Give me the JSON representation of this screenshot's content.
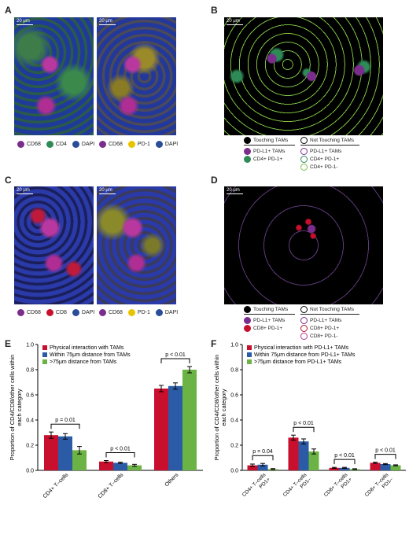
{
  "panels": {
    "A": {
      "letter": "A",
      "scale": "20 μm",
      "legend_left": [
        {
          "label": "CD68",
          "color": "#7b2d8e"
        },
        {
          "label": "CD4",
          "color": "#2e8b57"
        },
        {
          "label": "DAPI",
          "color": "#2a4d9a"
        }
      ],
      "legend_right": [
        {
          "label": "CD68",
          "color": "#7b2d8e"
        },
        {
          "label": "PD-1",
          "color": "#e8c400"
        },
        {
          "label": "DAPI",
          "color": "#2a4d9a"
        }
      ]
    },
    "B": {
      "letter": "B",
      "scale": "20 μm",
      "touching_header": "Touching TAMs",
      "not_touching_header": "Not Touching TAMs",
      "touching": [
        {
          "label": "PD-L1+ TAMs",
          "color": "#7b2d8e"
        },
        {
          "label": "CD4+ PD-1+",
          "color": "#2e8b57"
        }
      ],
      "not_touching": [
        {
          "label": "PD-L1+ TAMs",
          "color": "#7b2d8e"
        },
        {
          "label": "CD4+ PD-1+",
          "color": "#2e8b57"
        },
        {
          "label": "CD4+ PD-1-",
          "color": "#7dc242"
        }
      ]
    },
    "C": {
      "letter": "C",
      "scale": "20 μm",
      "legend_left": [
        {
          "label": "CD68",
          "color": "#7b2d8e"
        },
        {
          "label": "CD8",
          "color": "#c8102e"
        },
        {
          "label": "DAPI",
          "color": "#2a4d9a"
        }
      ],
      "legend_right": [
        {
          "label": "CD68",
          "color": "#7b2d8e"
        },
        {
          "label": "PD-1",
          "color": "#e8c400"
        },
        {
          "label": "DAPI",
          "color": "#2a4d9a"
        }
      ]
    },
    "D": {
      "letter": "D",
      "scale": "20 μm",
      "touching_header": "Touching TAMs",
      "not_touching_header": "Not Touching TAMs",
      "touching": [
        {
          "label": "PD-L1+ TAMs",
          "color": "#7b2d8e"
        },
        {
          "label": "CD8+ PD-1+",
          "color": "#c8102e"
        }
      ],
      "not_touching": [
        {
          "label": "PD-L1+ TAMs",
          "color": "#7b2d8e"
        },
        {
          "label": "CD8+ PD-1+",
          "color": "#c8102e"
        },
        {
          "label": "CD8+ PD-1-",
          "color": "#b03a8a"
        }
      ]
    },
    "E": {
      "letter": "E"
    },
    "F": {
      "letter": "F"
    }
  },
  "chart_data": [
    {
      "type": "bar",
      "ylabel": "Proportion of CD4/CD8/other cells within each category",
      "ylim": [
        0,
        1.0
      ],
      "yticks": [
        "0.0",
        "0.2",
        "0.4",
        "0.6",
        "0.8",
        "1.0"
      ],
      "categories": [
        "CD4+ T–cells",
        "CD8+ T–cells",
        "Others"
      ],
      "series": [
        {
          "name": "Physical interaction with TAMs",
          "color": "#c8102e",
          "values": [
            0.28,
            0.07,
            0.65
          ],
          "err": [
            0.025,
            0.008,
            0.025
          ]
        },
        {
          "name": "Within 75μm distance from TAMs",
          "color": "#2b5ba6",
          "values": [
            0.27,
            0.06,
            0.67
          ],
          "err": [
            0.022,
            0.005,
            0.025
          ]
        },
        {
          "name": ">75μm distance from TAMs",
          "color": "#6ab344",
          "values": [
            0.16,
            0.04,
            0.8
          ],
          "err": [
            0.03,
            0.008,
            0.025
          ]
        }
      ],
      "annotations": [
        "p = 0.01",
        "p < 0.01",
        "p < 0.01"
      ],
      "legend": "top-left"
    },
    {
      "type": "bar",
      "ylabel": "Proportion of CD4/CD8/other cells within each category",
      "ylim": [
        0,
        1.0
      ],
      "yticks": [
        "0.0",
        "0.2",
        "0.4",
        "0.6",
        "0.8",
        "1.0"
      ],
      "categories": [
        [
          "CD4+ T–cells",
          "PD1+"
        ],
        [
          "CD4+ T–cells",
          "PD1–"
        ],
        [
          "CD8+ T–cells",
          "PD1+"
        ],
        [
          "CD8+ T–cells",
          "PD1–"
        ]
      ],
      "series": [
        {
          "name": "Physical interaction with PD-L1+ TAMs",
          "color": "#c8102e",
          "values": [
            0.04,
            0.26,
            0.02,
            0.06
          ],
          "err": [
            0.01,
            0.02,
            0.004,
            0.005
          ]
        },
        {
          "name": "Within 75μm distance from PD-L1+ TAMs",
          "color": "#2b5ba6",
          "values": [
            0.045,
            0.23,
            0.02,
            0.05
          ],
          "err": [
            0.01,
            0.02,
            0.004,
            0.004
          ]
        },
        {
          "name": ">75μm distance from PD-L1+ TAMs",
          "color": "#6ab344",
          "values": [
            0.01,
            0.15,
            0.01,
            0.04
          ],
          "err": [
            0.004,
            0.02,
            0.003,
            0.004
          ]
        }
      ],
      "annotations": [
        "p = 0.04",
        "p < 0.01",
        "p < 0.01",
        "p < 0.01"
      ],
      "legend": "top-left"
    }
  ]
}
